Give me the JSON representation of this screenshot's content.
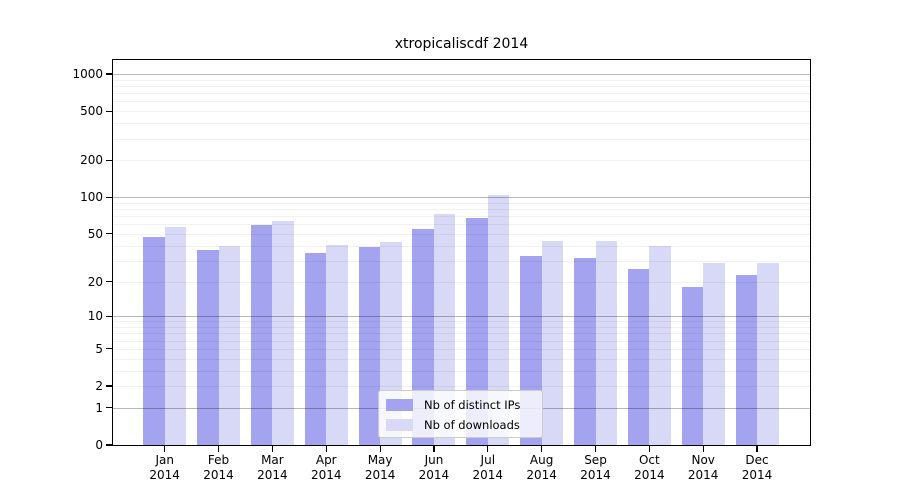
{
  "title": "xtropicaliscdf 2014",
  "legend": {
    "items": [
      {
        "label": "Nb of distinct IPs",
        "color": "#a3a3f0"
      },
      {
        "label": "Nb of downloads",
        "color": "#d8d8f7"
      }
    ]
  },
  "chart_data": {
    "type": "bar",
    "title": "xtropicaliscdf 2014",
    "xlabel": "",
    "ylabel": "",
    "scale": "log10(value+1)",
    "grid": {
      "major_values": [
        1,
        10,
        100,
        1000
      ],
      "minor": true
    },
    "legend_position": "bottom-center-inside",
    "categories": [
      "Jan",
      "Feb",
      "Mar",
      "Apr",
      "May",
      "Jun",
      "Jul",
      "Aug",
      "Sep",
      "Oct",
      "Nov",
      "Dec"
    ],
    "category_year": "2014",
    "y_ticks": [
      0,
      1,
      2,
      5,
      10,
      20,
      50,
      100,
      200,
      500,
      1000
    ],
    "ylim": [
      0,
      1300
    ],
    "series": [
      {
        "name": "Nb of distinct IPs",
        "color": "#a3a3f0",
        "values": [
          48,
          37,
          60,
          35,
          39,
          55,
          68,
          33,
          32,
          26,
          18,
          23
        ]
      },
      {
        "name": "Nb of downloads",
        "color": "#d8d8f7",
        "values": [
          58,
          40,
          65,
          41,
          43,
          74,
          106,
          44,
          44,
          40,
          29,
          29
        ]
      }
    ]
  }
}
